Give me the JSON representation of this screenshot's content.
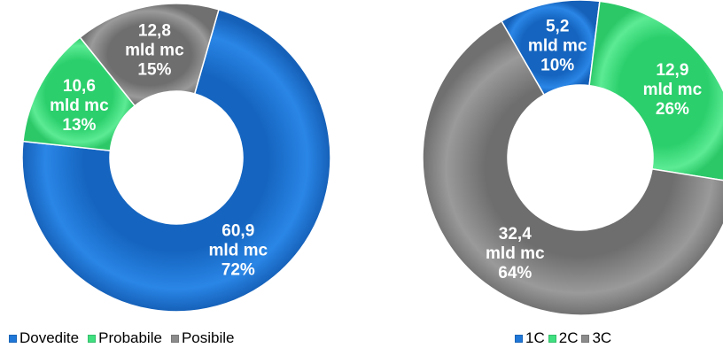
{
  "chart_data": [
    {
      "type": "pie",
      "donut": true,
      "title": "",
      "categories": [
        "Dovedite",
        "Probabile",
        "Posibile"
      ],
      "values": [
        60.9,
        10.6,
        12.8
      ],
      "percentages": [
        72,
        13,
        15
      ],
      "labels": [
        [
          "60,9",
          "mld mc",
          "72%"
        ],
        [
          "10,6",
          "mld mc",
          "13%"
        ],
        [
          "12,8",
          "mld mc",
          "15%"
        ]
      ],
      "colors": [
        "#1F77D8",
        "#3FE07F",
        "#8C8C8C"
      ],
      "legend": "bottom"
    },
    {
      "type": "pie",
      "donut": true,
      "title": "",
      "categories": [
        "1C",
        "2C",
        "3C"
      ],
      "values": [
        5.2,
        12.9,
        32.4
      ],
      "percentages": [
        10,
        26,
        64
      ],
      "labels": [
        [
          "5,2",
          "mld mc",
          "10%"
        ],
        [
          "12,9",
          "mld mc",
          "26%"
        ],
        [
          "32,4",
          "mld mc",
          "64%"
        ]
      ],
      "colors": [
        "#1F77D8",
        "#3FE07F",
        "#8C8C8C"
      ],
      "legend": "bottom"
    }
  ]
}
